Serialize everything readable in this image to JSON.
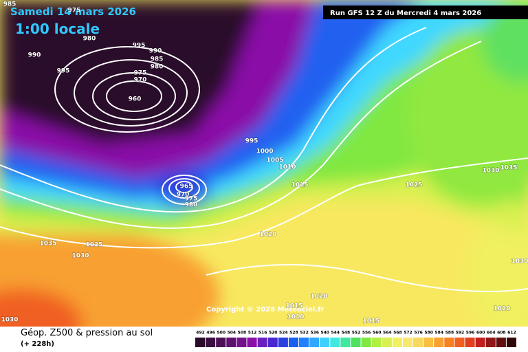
{
  "header": {
    "date": "Samedi 14 mars 2026",
    "time": "1:00 locale",
    "run": "Run GFS 12 Z du Mercredi 4 mars 2026"
  },
  "copyright": "Copyright © 2026 Meteociel.fr",
  "footer": {
    "title": "Géop. Z500 & pression au sol",
    "lead": "(+ 228h)"
  },
  "legend": {
    "levels": [
      492,
      496,
      500,
      504,
      508,
      512,
      516,
      520,
      524,
      528,
      532,
      536,
      540,
      544,
      548,
      552,
      556,
      560,
      564,
      568,
      572,
      576,
      580,
      584,
      588,
      592,
      596,
      600,
      604,
      608,
      612
    ],
    "colors": [
      "#2a0a2a",
      "#3a0f3f",
      "#4d1055",
      "#5e1270",
      "#74128c",
      "#8a10a8",
      "#6a20c0",
      "#4a28d0",
      "#2a40e0",
      "#1a60f0",
      "#2080ff",
      "#30a8ff",
      "#40d0ff",
      "#40e8e0",
      "#40e8a0",
      "#50e060",
      "#80e840",
      "#b0f040",
      "#d8f050",
      "#f0f060",
      "#f8e870",
      "#f8d860",
      "#f8c040",
      "#f8a030",
      "#f88020",
      "#f06020",
      "#e04020",
      "#c02020",
      "#901818",
      "#601010",
      "#300808"
    ]
  },
  "isobar_labels": [
    985,
    975,
    980,
    990,
    995,
    995,
    990,
    985,
    980,
    975,
    970,
    960,
    995,
    1000,
    1005,
    1010,
    965,
    970,
    975,
    980,
    1015,
    1025,
    1030,
    1035,
    1020,
    1035,
    1025,
    1030,
    1030,
    1020,
    1015,
    1010,
    1015,
    1020,
    1030
  ]
}
